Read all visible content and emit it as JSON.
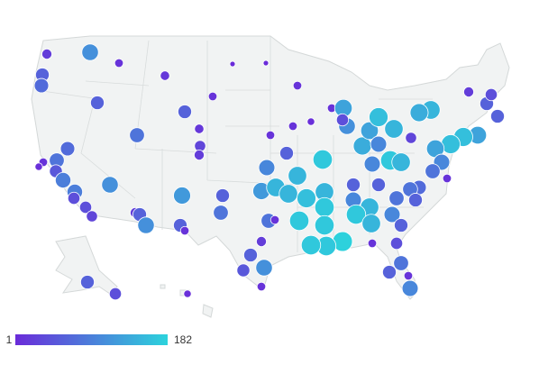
{
  "map": {
    "type": "bubble-map",
    "values": [
      110,
      20,
      60,
      70,
      60,
      10,
      15,
      10,
      1,
      1,
      60,
      80,
      15,
      30,
      20,
      70,
      80,
      10,
      5,
      50,
      90,
      90,
      40,
      40,
      30,
      110,
      20,
      60,
      110,
      120,
      60,
      10,
      60,
      80,
      100,
      120,
      60,
      150,
      150,
      160,
      150,
      150,
      170,
      10,
      10,
      5,
      10,
      10,
      130,
      110,
      140,
      130,
      40,
      160,
      150,
      30,
      100,
      100,
      170,
      150,
      150,
      140,
      20,
      60,
      40,
      60,
      130,
      160,
      160,
      130,
      100,
      80,
      10,
      70,
      80,
      80,
      60,
      60,
      60,
      100,
      150,
      170,
      150,
      100,
      60,
      170,
      170,
      170,
      180,
      170,
      170,
      80,
      10,
      20,
      60,
      110,
      50,
      10,
      10,
      40,
      80,
      60,
      10,
      100,
      60,
      40,
      5
    ],
    "legend": {
      "min": 1,
      "max": 182,
      "colors": [
        "#6a2bd9",
        "#2cd3dc"
      ]
    }
  }
}
